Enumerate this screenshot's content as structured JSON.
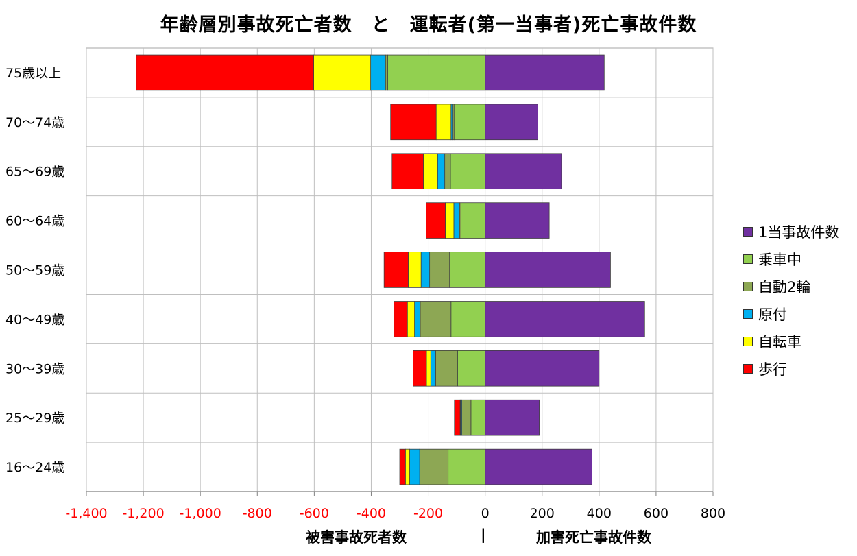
{
  "chart_data": {
    "type": "bar",
    "orientation": "horizontal",
    "stacked": true,
    "title": "年齢層別事故死亡者数　と　運転者(第一当事者)死亡事故件数",
    "categories": [
      "75歳以上",
      "70〜74歳",
      "65〜69歳",
      "60〜64歳",
      "50〜59歳",
      "40〜49歳",
      "30〜39歳",
      "25〜29歳",
      "16〜24歳"
    ],
    "series": [
      {
        "name": "1当事故件数",
        "color": "#7030A0",
        "values": [
          418,
          185,
          268,
          225,
          440,
          560,
          400,
          190,
          375
        ]
      },
      {
        "name": "乗車中",
        "color": "#92D050",
        "values": [
          -342,
          -108,
          -122,
          -85,
          -125,
          -120,
          -97,
          -50,
          -130
        ]
      },
      {
        "name": "自動2輪",
        "color": "#8DA754",
        "values": [
          -8,
          -5,
          -20,
          -5,
          -70,
          -108,
          -77,
          -32,
          -100
        ]
      },
      {
        "name": "原付",
        "color": "#00B0F0",
        "values": [
          -52,
          -7,
          -25,
          -20,
          -30,
          -20,
          -17,
          -4,
          -35
        ]
      },
      {
        "name": "自転車",
        "color": "#FFFF00",
        "values": [
          -200,
          -52,
          -50,
          -30,
          -45,
          -25,
          -15,
          -2,
          -15
        ]
      },
      {
        "name": "歩行",
        "color": "#FF0000",
        "values": [
          -623,
          -160,
          -110,
          -67,
          -85,
          -47,
          -47,
          -20,
          -20
        ]
      }
    ],
    "xlim": [
      -1400,
      800
    ],
    "xticks": [
      -1400,
      -1200,
      -1000,
      -800,
      -600,
      -400,
      -200,
      0,
      200,
      400,
      600,
      800
    ],
    "xtick_labels": [
      "-1,400",
      "-1,200",
      "-1,000",
      "-800",
      "-600",
      "-400",
      "-200",
      "0",
      "200",
      "400",
      "600",
      "800"
    ],
    "negative_tick_color": "#FF0000",
    "grid": true,
    "legend_position": "right",
    "xlabel_left": "被害事故死者数",
    "xlabel_divider": "|",
    "xlabel_right": "加害死亡事故件数"
  }
}
